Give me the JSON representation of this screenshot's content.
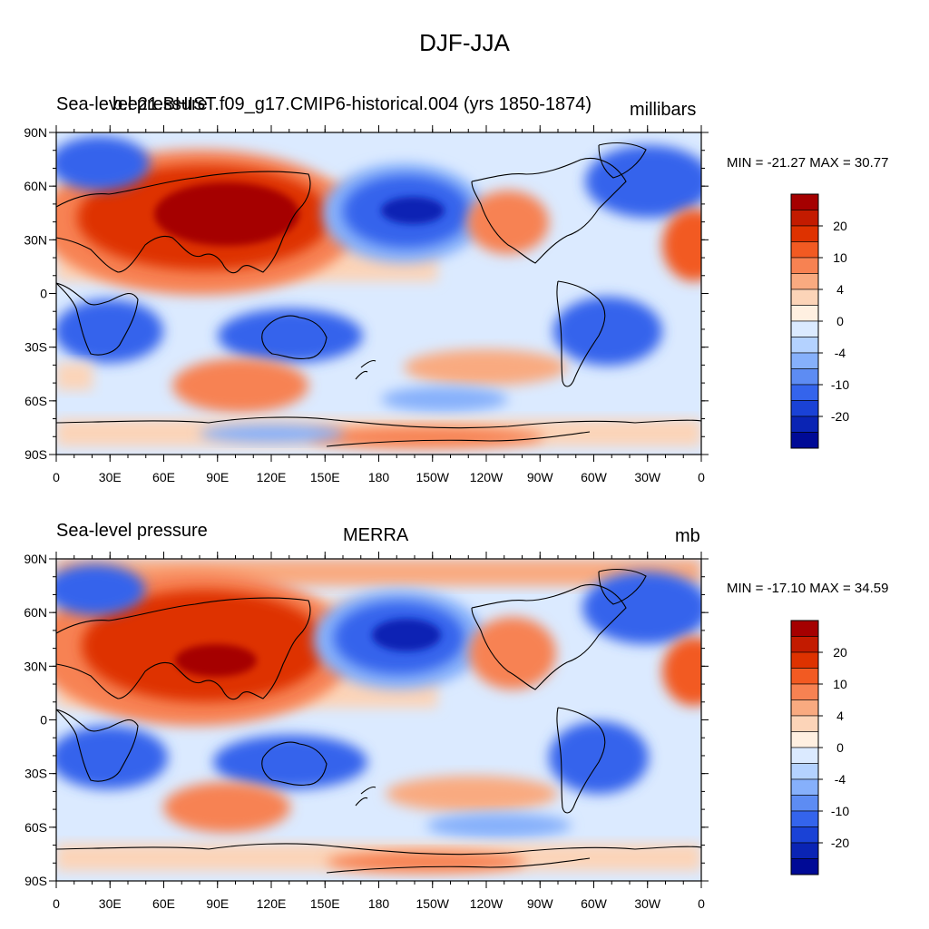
{
  "main_title": "DJF-JJA",
  "palette": [
    "#a50000",
    "#c31b00",
    "#de3200",
    "#f25a22",
    "#f78252",
    "#f9aa80",
    "#fcd4b8",
    "#fff0e1",
    "#dbeaff",
    "#b4d2ff",
    "#86b0fb",
    "#5d8cf3",
    "#3464ec",
    "#1a42d6",
    "#0a24b4",
    "#000a96"
  ],
  "colorbar_labels": [
    "20",
    "10",
    "4",
    "0",
    "-4",
    "-10",
    "-20"
  ],
  "x_tick_labels": [
    "0",
    "30E",
    "60E",
    "90E",
    "120E",
    "150E",
    "180",
    "150W",
    "120W",
    "90W",
    "60W",
    "30W",
    "0"
  ],
  "y_tick_labels": [
    "90N",
    "60N",
    "30N",
    "0",
    "30S",
    "60S",
    "90S"
  ],
  "panels": [
    {
      "left_title": "Sea-level pressure",
      "center_title": "b.e21.BHIST.f09_g17.CMIP6-historical.004 (yrs 1850-1874)",
      "right_title": "millibars",
      "minmax": "MIN = -21.27 MAX =  30.77"
    },
    {
      "left_title": "Sea-level pressure",
      "center_title": "MERRA",
      "right_title": "mb",
      "minmax": "MIN = -17.10 MAX =  34.59"
    }
  ]
}
